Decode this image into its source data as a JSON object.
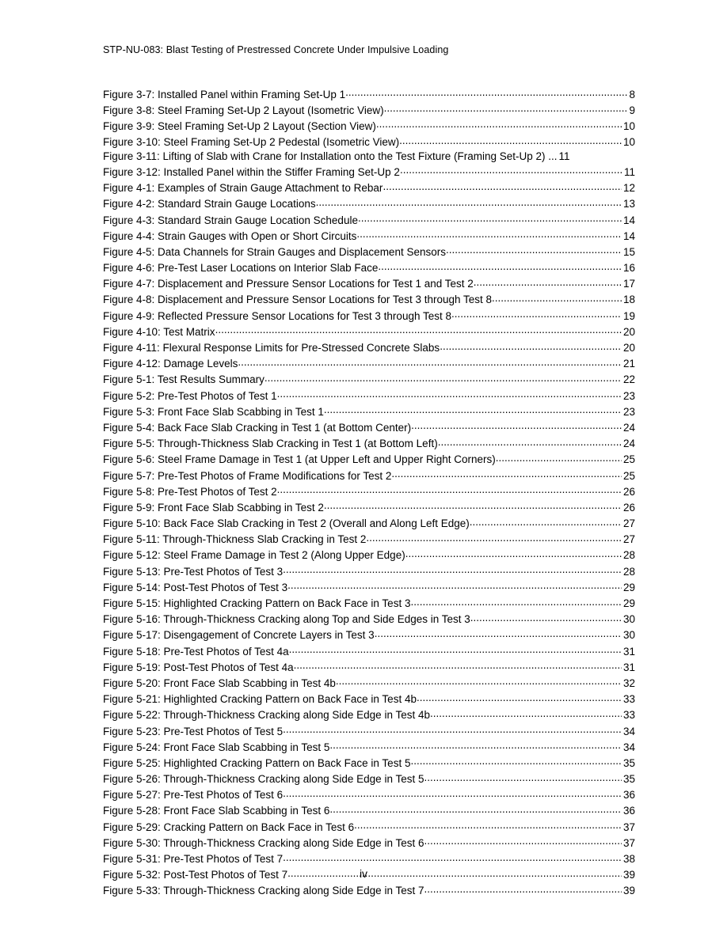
{
  "header": "STP-NU-083: Blast Testing of Prestressed Concrete Under Impulsive Loading",
  "page_number": "iv",
  "entries": [
    {
      "label": "Figure 3-7:  Installed Panel within Framing Set-Up 1",
      "page": "8",
      "dots": true
    },
    {
      "label": "Figure 3-8:  Steel Framing Set-Up 2 Layout (Isometric View)",
      "page": "9",
      "dots": true
    },
    {
      "label": "Figure 3-9:  Steel Framing Set-Up 2 Layout (Section View)",
      "page": "10",
      "dots": true
    },
    {
      "label": "Figure 3-10:  Steel Framing Set-Up 2 Pedestal (Isometric View)",
      "page": "10",
      "dots": true
    },
    {
      "label": "Figure 3-11:  Lifting of Slab with Crane for Installation onto the Test Fixture (Framing Set-Up 2) ...",
      "page": "11",
      "dots": false
    },
    {
      "label": "Figure 3-12:  Installed Panel within the Stiffer Framing Set-Up 2",
      "page": "11",
      "dots": true
    },
    {
      "label": "Figure 4-1:  Examples of Strain Gauge Attachment to Rebar",
      "page": "12",
      "dots": true
    },
    {
      "label": "Figure 4-2:  Standard Strain Gauge Locations",
      "page": "13",
      "dots": true
    },
    {
      "label": "Figure 4-3:  Standard Strain Gauge Location Schedule",
      "page": "14",
      "dots": true
    },
    {
      "label": "Figure 4-4:  Strain Gauges with Open or Short Circuits",
      "page": "14",
      "dots": true
    },
    {
      "label": "Figure 4-5:  Data Channels for Strain Gauges and Displacement Sensors",
      "page": "15",
      "dots": true
    },
    {
      "label": "Figure 4-6:  Pre-Test Laser Locations on Interior Slab Face",
      "page": "16",
      "dots": true
    },
    {
      "label": "Figure 4-7:  Displacement and Pressure Sensor Locations for Test 1 and Test 2",
      "page": "17",
      "dots": true
    },
    {
      "label": "Figure 4-8:  Displacement and Pressure Sensor Locations for Test 3 through Test 8",
      "page": "18",
      "dots": true
    },
    {
      "label": "Figure 4-9:  Reflected Pressure Sensor Locations for Test 3 through Test 8",
      "page": "19",
      "dots": true
    },
    {
      "label": "Figure 4-10:  Test Matrix",
      "page": "20",
      "dots": true
    },
    {
      "label": "Figure 4-11:  Flexural Response Limits for Pre-Stressed Concrete Slabs",
      "page": "20",
      "dots": true
    },
    {
      "label": "Figure 4-12:  Damage Levels",
      "page": "21",
      "dots": true
    },
    {
      "label": "Figure 5-1:  Test Results Summary",
      "page": "22",
      "dots": true
    },
    {
      "label": "Figure 5-2:  Pre-Test Photos of Test 1",
      "page": "23",
      "dots": true
    },
    {
      "label": "Figure 5-3:  Front Face Slab Scabbing in Test 1",
      "page": "23",
      "dots": true
    },
    {
      "label": "Figure 5-4:  Back Face Slab Cracking in Test 1 (at Bottom Center)",
      "page": "24",
      "dots": true
    },
    {
      "label": "Figure 5-5:  Through-Thickness Slab Cracking in Test 1 (at Bottom Left)",
      "page": "24",
      "dots": true
    },
    {
      "label": "Figure 5-6:  Steel Frame Damage in Test 1 (at Upper Left and Upper Right Corners)",
      "page": "25",
      "dots": true
    },
    {
      "label": "Figure 5-7:  Pre-Test Photos of Frame Modifications for Test 2",
      "page": "25",
      "dots": true
    },
    {
      "label": "Figure 5-8:  Pre-Test Photos of Test 2",
      "page": "26",
      "dots": true
    },
    {
      "label": "Figure 5-9:  Front Face Slab Scabbing in Test 2",
      "page": "26",
      "dots": true
    },
    {
      "label": "Figure 5-10:  Back Face Slab Cracking in Test 2 (Overall and Along Left Edge)",
      "page": "27",
      "dots": true
    },
    {
      "label": "Figure 5-11:  Through-Thickness Slab Cracking in Test 2",
      "page": "27",
      "dots": true
    },
    {
      "label": "Figure 5-12:  Steel Frame Damage in Test 2 (Along Upper Edge)",
      "page": "28",
      "dots": true
    },
    {
      "label": "Figure 5-13:  Pre-Test Photos of Test 3",
      "page": "28",
      "dots": true
    },
    {
      "label": "Figure 5-14:  Post-Test Photos of Test 3",
      "page": "29",
      "dots": true
    },
    {
      "label": "Figure 5-15:  Highlighted Cracking Pattern on Back Face in Test 3",
      "page": "29",
      "dots": true
    },
    {
      "label": "Figure 5-16:  Through-Thickness Cracking along Top and Side Edges in Test 3",
      "page": "30",
      "dots": true
    },
    {
      "label": "Figure 5-17:  Disengagement of Concrete Layers in Test 3",
      "page": "30",
      "dots": true
    },
    {
      "label": "Figure 5-18:  Pre-Test Photos of Test 4a",
      "page": "31",
      "dots": true
    },
    {
      "label": "Figure 5-19:  Post-Test Photos of Test 4a",
      "page": "31",
      "dots": true
    },
    {
      "label": "Figure 5-20:  Front Face Slab Scabbing in Test 4b",
      "page": "32",
      "dots": true
    },
    {
      "label": "Figure 5-21:  Highlighted Cracking Pattern on Back Face in Test 4b",
      "page": "33",
      "dots": true
    },
    {
      "label": "Figure 5-22:  Through-Thickness Cracking along Side Edge in Test 4b",
      "page": "33",
      "dots": true
    },
    {
      "label": "Figure 5-23:  Pre-Test Photos of Test 5",
      "page": "34",
      "dots": true
    },
    {
      "label": "Figure 5-24:  Front Face Slab Scabbing in Test 5",
      "page": "34",
      "dots": true
    },
    {
      "label": "Figure 5-25: Highlighted Cracking Pattern on Back Face in Test 5",
      "page": "35",
      "dots": true
    },
    {
      "label": "Figure 5-26: Through-Thickness Cracking along Side Edge in Test 5",
      "page": "35",
      "dots": true
    },
    {
      "label": "Figure 5-27:  Pre-Test Photos of Test 6",
      "page": "36",
      "dots": true
    },
    {
      "label": "Figure 5-28:  Front Face Slab Scabbing in Test 6",
      "page": "36",
      "dots": true
    },
    {
      "label": "Figure 5-29:  Cracking Pattern on Back Face in Test 6",
      "page": "37",
      "dots": true
    },
    {
      "label": "Figure 5-30:  Through-Thickness Cracking along Side Edge in Test 6",
      "page": "37",
      "dots": true
    },
    {
      "label": "Figure 5-31:  Pre-Test Photos of Test 7",
      "page": "38",
      "dots": true
    },
    {
      "label": "Figure 5-32:  Post-Test Photos of Test 7",
      "page": "39",
      "dots": true
    },
    {
      "label": "Figure 5-33:  Through-Thickness Cracking along Side Edge in Test 7",
      "page": "39",
      "dots": true
    }
  ]
}
